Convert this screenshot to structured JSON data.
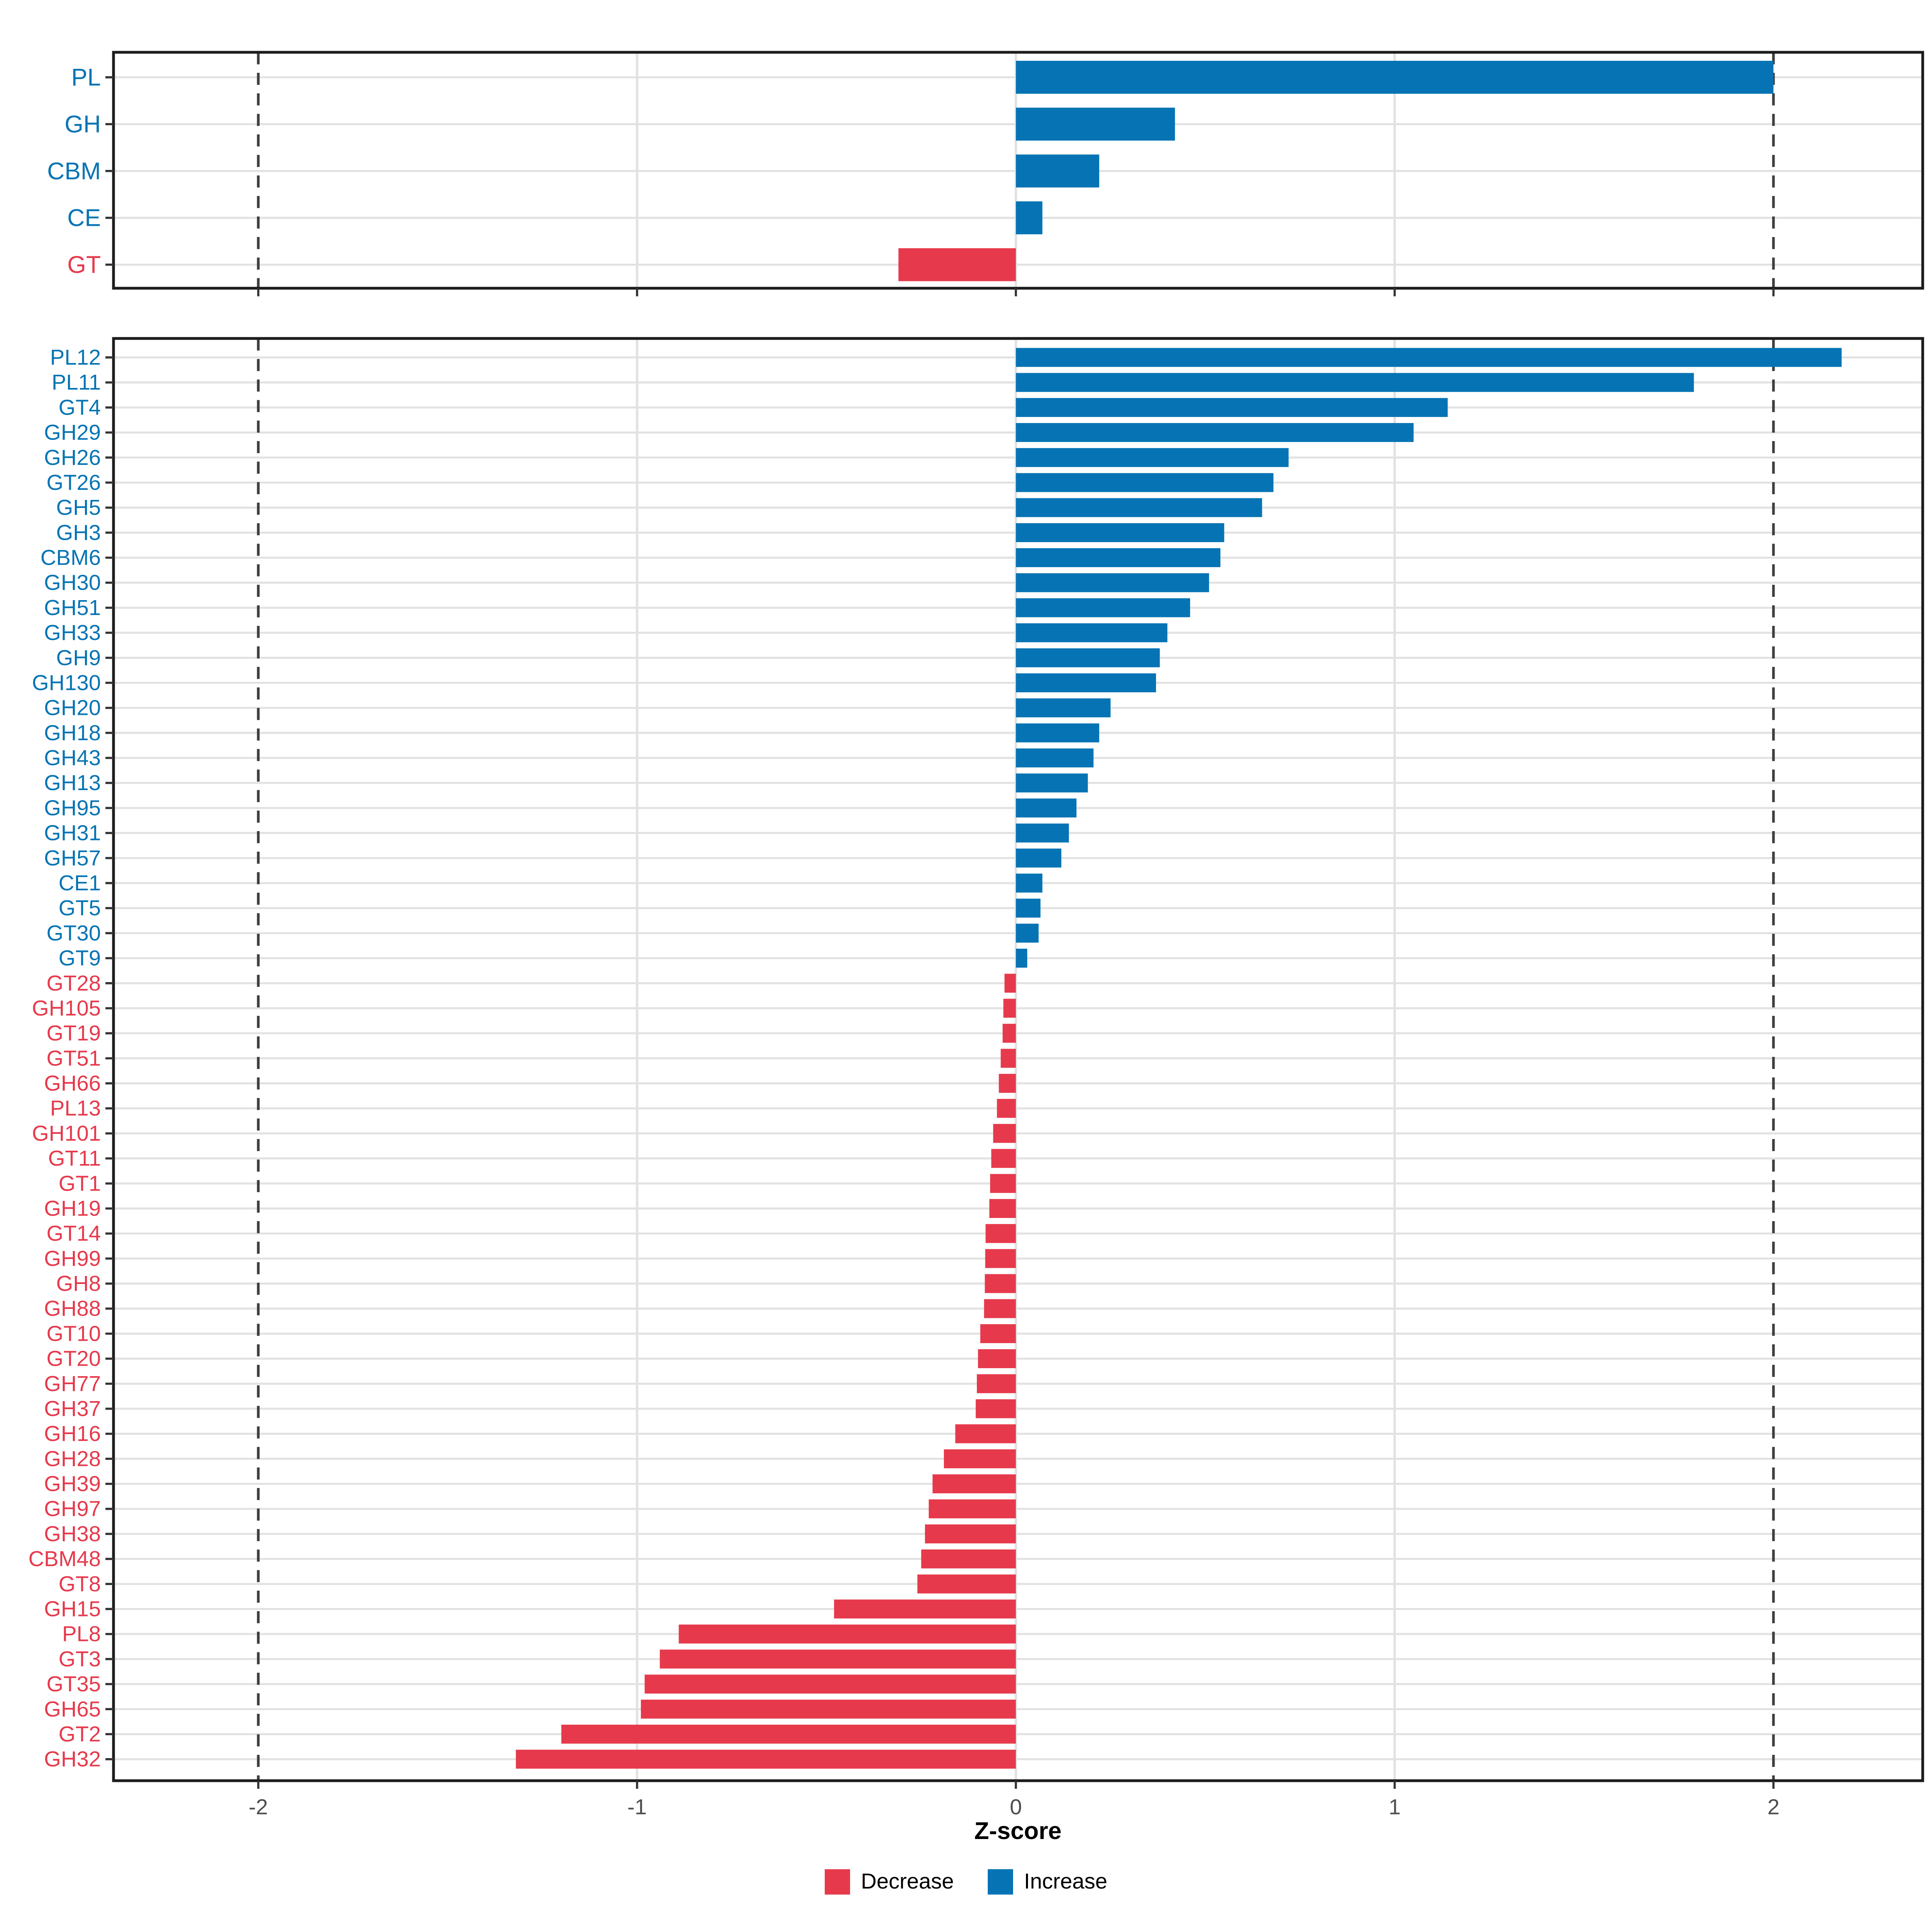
{
  "chart": {
    "axis": {
      "xlabel": "Z-score",
      "x_ticks": [
        -2,
        -1,
        0,
        1,
        2
      ],
      "x_tick_labels": [
        "-2",
        "-1",
        "0",
        "1",
        "2"
      ],
      "solid_gridlines_x": [
        -1,
        0,
        1
      ],
      "dashed_lines_x": [
        -2,
        2
      ],
      "xlim": [
        -2.38,
        2.39
      ]
    },
    "colors": {
      "increase": "#0674B4",
      "decrease": "#E63A4C",
      "grid": "#E2E2E2",
      "dashed_line": "#3F3F3F",
      "panel_border": "#1C1C1C",
      "axis_text": "#4D4D4D",
      "tick_mark": "#333333"
    },
    "legend": {
      "items": [
        {
          "label": "Decrease",
          "color_key": "decrease"
        },
        {
          "label": "Increase",
          "color_key": "increase"
        }
      ]
    },
    "chart_data": [
      {
        "type": "bar",
        "orientation": "horizontal",
        "panel": "top",
        "xlabel": "Z-score",
        "xlim": [
          -2.38,
          2.39
        ],
        "categories": [
          "PL",
          "GH",
          "CBM",
          "CE",
          "GT"
        ],
        "values": [
          2.0,
          0.42,
          0.22,
          0.07,
          -0.31
        ]
      },
      {
        "type": "bar",
        "orientation": "horizontal",
        "panel": "bottom",
        "xlabel": "Z-score",
        "xlim": [
          -2.38,
          2.39
        ],
        "categories": [
          "PL12",
          "PL11",
          "GT4",
          "GH29",
          "GH26",
          "GT26",
          "GH5",
          "GH3",
          "CBM6",
          "GH30",
          "GH51",
          "GH33",
          "GH9",
          "GH130",
          "GH20",
          "GH18",
          "GH43",
          "GH13",
          "GH95",
          "GH31",
          "GH57",
          "CE1",
          "GT5",
          "GT30",
          "GT9",
          "GT28",
          "GH105",
          "GT19",
          "GT51",
          "GH66",
          "PL13",
          "GH101",
          "GT11",
          "GT1",
          "GH19",
          "GT14",
          "GH99",
          "GH8",
          "GH88",
          "GT10",
          "GT20",
          "GH77",
          "GH37",
          "GH16",
          "GH28",
          "GH39",
          "GH97",
          "GH38",
          "CBM48",
          "GT8",
          "GH15",
          "PL8",
          "GT3",
          "GT35",
          "GH65",
          "GT2",
          "GH32"
        ],
        "values": [
          2.18,
          1.79,
          1.14,
          1.05,
          0.72,
          0.68,
          0.65,
          0.55,
          0.54,
          0.51,
          0.46,
          0.4,
          0.38,
          0.37,
          0.25,
          0.22,
          0.205,
          0.19,
          0.16,
          0.14,
          0.12,
          0.07,
          0.065,
          0.06,
          0.03,
          -0.03,
          -0.033,
          -0.035,
          -0.04,
          -0.045,
          -0.05,
          -0.06,
          -0.065,
          -0.068,
          -0.07,
          -0.08,
          -0.081,
          -0.082,
          -0.084,
          -0.094,
          -0.1,
          -0.103,
          -0.106,
          -0.16,
          -0.19,
          -0.22,
          -0.23,
          -0.24,
          -0.25,
          -0.26,
          -0.48,
          -0.89,
          -0.94,
          -0.98,
          -0.99,
          -1.2,
          -1.32
        ]
      }
    ]
  }
}
